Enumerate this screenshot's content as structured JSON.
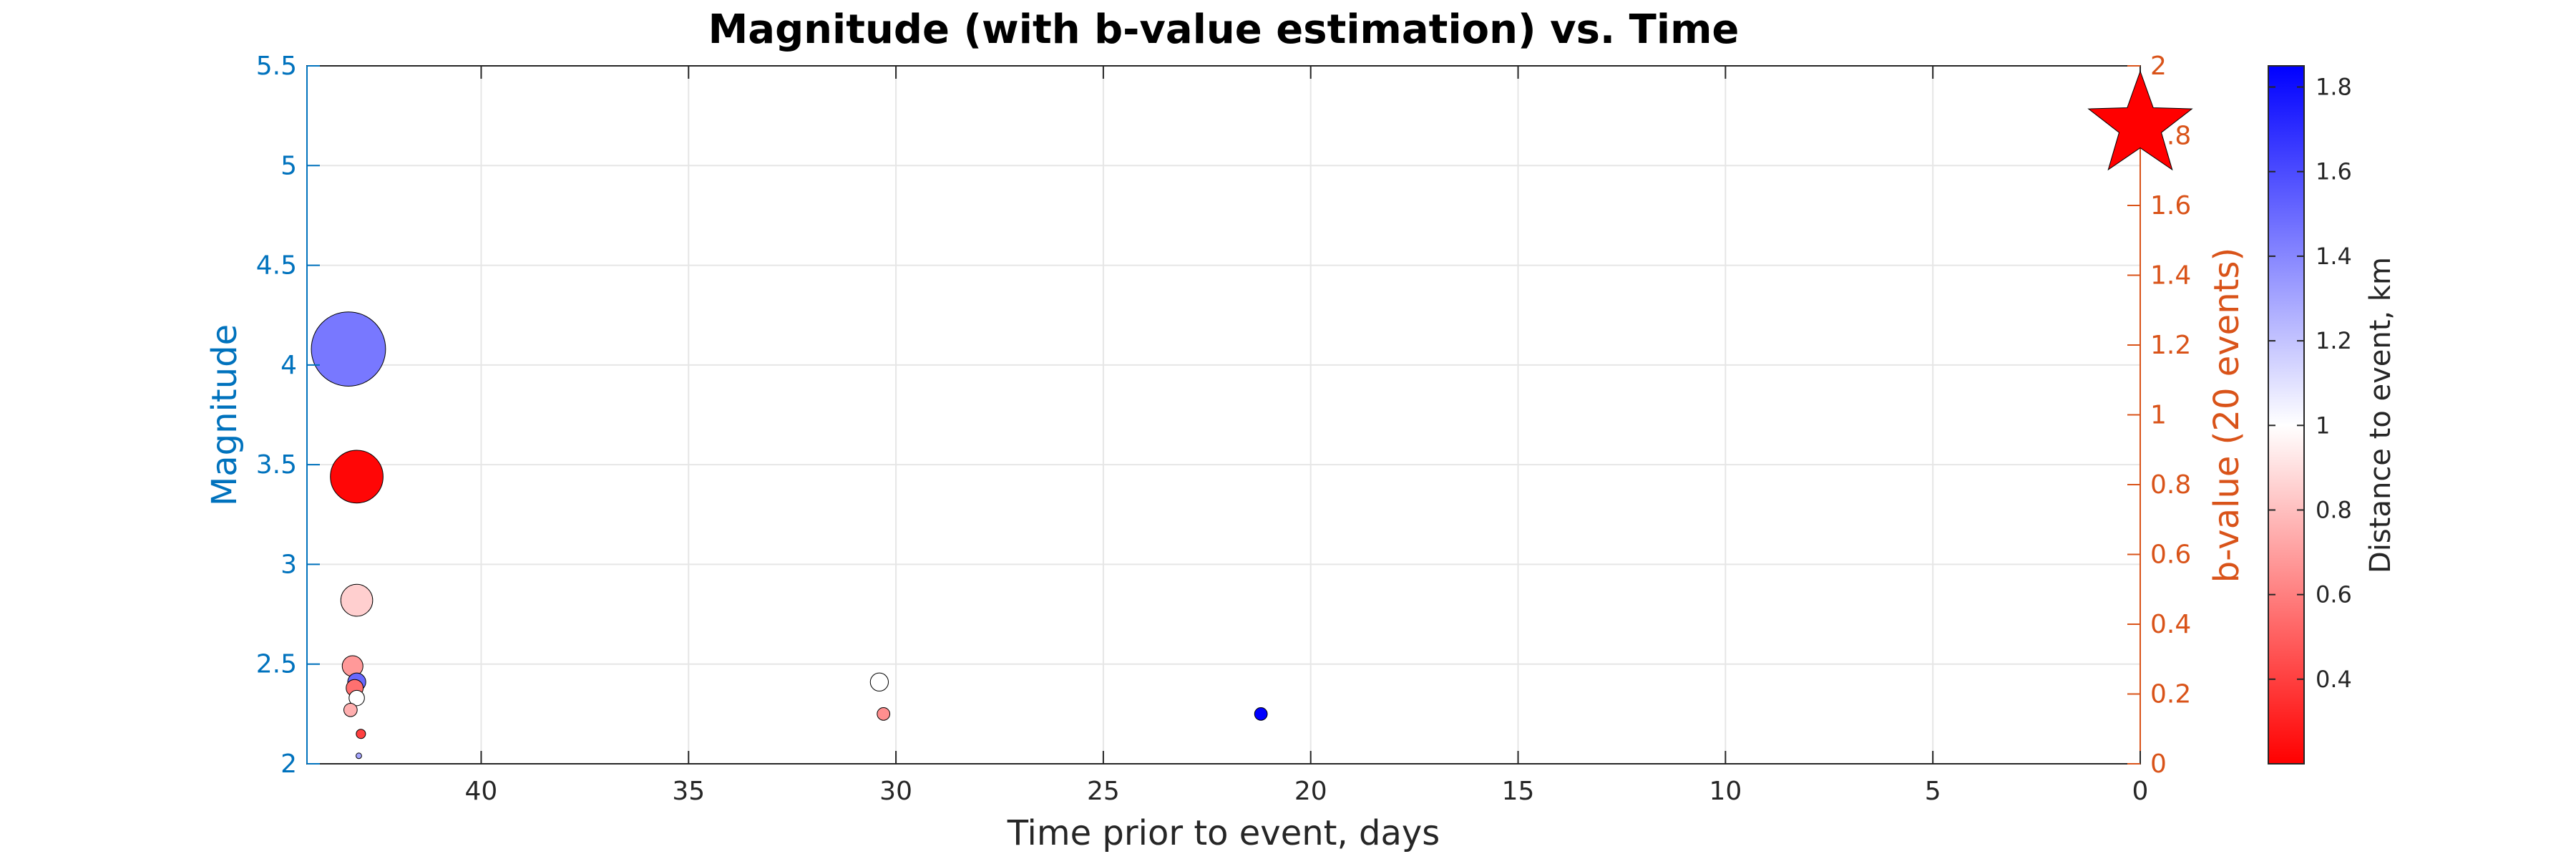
{
  "chart_data": {
    "type": "scatter",
    "title": "Magnitude (with b-value estimation) vs. Time",
    "xlabel": "Time prior to event, days",
    "ylabel_left": "Magnitude",
    "ylabel_right": "b-value (20 events)",
    "colorbar_label": "Distance to event, km",
    "x_reversed": true,
    "xlim": [
      44.2,
      0
    ],
    "ylim_left": [
      2,
      5.5
    ],
    "ylim_right": [
      0,
      2
    ],
    "colorbar_lim": [
      0.2,
      1.85
    ],
    "x_ticks": [
      "40",
      "35",
      "30",
      "25",
      "20",
      "15",
      "10",
      "5",
      "0"
    ],
    "y_left_ticks": [
      "2",
      "2.5",
      "3",
      "3.5",
      "4",
      "4.5",
      "5",
      "5.5"
    ],
    "y_right_ticks": [
      "0",
      "0.2",
      "0.4",
      "0.6",
      "0.8",
      "1",
      "1.2",
      "1.4",
      "1.6",
      "1.8",
      "2"
    ],
    "colorbar_ticks": [
      "0.4",
      "0.6",
      "0.8",
      "1",
      "1.2",
      "1.4",
      "1.6",
      "1.8"
    ],
    "grid": true,
    "colormap": {
      "low": "#ff0000",
      "mid": "#ffffff",
      "high": "#0000ff",
      "mid_value": 1.0
    },
    "colors": {
      "left_axis": "#0072bd",
      "right_axis": "#d95319",
      "mainshock": "#ff0000"
    },
    "points": [
      {
        "x": 43.2,
        "y": 4.08,
        "distance": 1.45
      },
      {
        "x": 43.0,
        "y": 3.44,
        "distance": 0.22
      },
      {
        "x": 43.0,
        "y": 2.82,
        "distance": 0.85
      },
      {
        "x": 43.1,
        "y": 2.49,
        "distance": 0.68
      },
      {
        "x": 43.0,
        "y": 2.41,
        "distance": 1.5
      },
      {
        "x": 43.05,
        "y": 2.38,
        "distance": 0.55
      },
      {
        "x": 43.0,
        "y": 2.33,
        "distance": 1.0
      },
      {
        "x": 43.15,
        "y": 2.27,
        "distance": 0.75
      },
      {
        "x": 42.9,
        "y": 2.15,
        "distance": 0.4
      },
      {
        "x": 42.95,
        "y": 2.04,
        "distance": 1.3
      },
      {
        "x": 30.4,
        "y": 2.41,
        "distance": 1.0
      },
      {
        "x": 30.3,
        "y": 2.25,
        "distance": 0.65
      },
      {
        "x": 21.2,
        "y": 2.25,
        "distance": 1.85
      }
    ],
    "mainshock": {
      "x": 0,
      "y": 5.2
    }
  }
}
